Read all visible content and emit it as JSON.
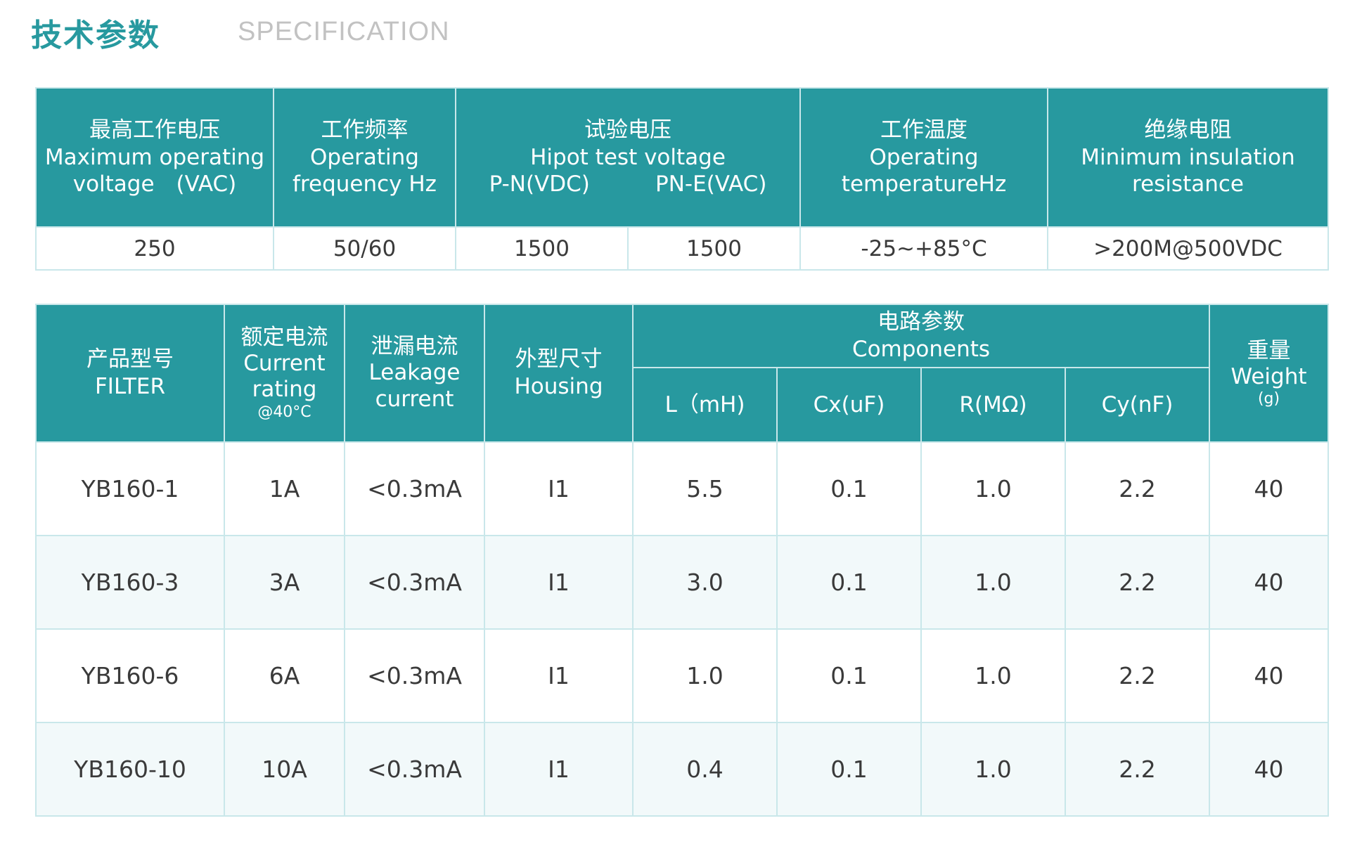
{
  "header": {
    "title_cn": "技术参数",
    "title_en": "SPECIFICATION"
  },
  "spec_table": {
    "headers": [
      {
        "lines": [
          "最高工作电压",
          "Maximum operating",
          "voltage　(VAC)"
        ]
      },
      {
        "lines": [
          "工作频率",
          "Operating",
          "frequency Hz"
        ]
      },
      {
        "lines": [
          "试验电压",
          "Hipot test voltage"
        ],
        "sub": [
          "P-N(VDC)",
          "PN-E(VAC)"
        ]
      },
      {
        "lines": [
          "工作温度",
          "Operating",
          "temperatureHz"
        ]
      },
      {
        "lines": [
          "绝缘电阻",
          "Minimum insulation",
          "resistance"
        ]
      }
    ],
    "values": [
      "250",
      "50/60",
      "1500",
      "1500",
      "-25~+85°C",
      ">200M@500VDC"
    ]
  },
  "filter_table": {
    "headers": {
      "model": [
        "产品型号",
        "FILTER"
      ],
      "current": [
        "额定电流",
        "Current",
        "rating",
        "@40°C"
      ],
      "leakage": [
        "泄漏电流",
        "Leakage",
        "current"
      ],
      "housing": [
        "外型尺寸",
        "Housing"
      ],
      "components": [
        "电路参数",
        "Components"
      ],
      "component_cols": [
        "L（mH)",
        "Cx(uF)",
        "R(MΩ)",
        "Cy(nF)"
      ],
      "weight": [
        "重量",
        "Weight",
        "(g)"
      ]
    },
    "rows": [
      [
        "YB160-1",
        "1A",
        "<0.3mA",
        "I1",
        "5.5",
        "0.1",
        "1.0",
        "2.2",
        "40"
      ],
      [
        "YB160-3",
        "3A",
        "<0.3mA",
        "I1",
        "3.0",
        "0.1",
        "1.0",
        "2.2",
        "40"
      ],
      [
        "YB160-6",
        "6A",
        "<0.3mA",
        "I1",
        "1.0",
        "0.1",
        "1.0",
        "2.2",
        "40"
      ],
      [
        "YB160-10",
        "10A",
        "<0.3mA",
        "I1",
        "0.4",
        "0.1",
        "1.0",
        "2.2",
        "40"
      ]
    ]
  },
  "colors": {
    "header_bg": "#27999f",
    "border": "#c9e7ea",
    "alt_row": "#f2f9fa"
  }
}
